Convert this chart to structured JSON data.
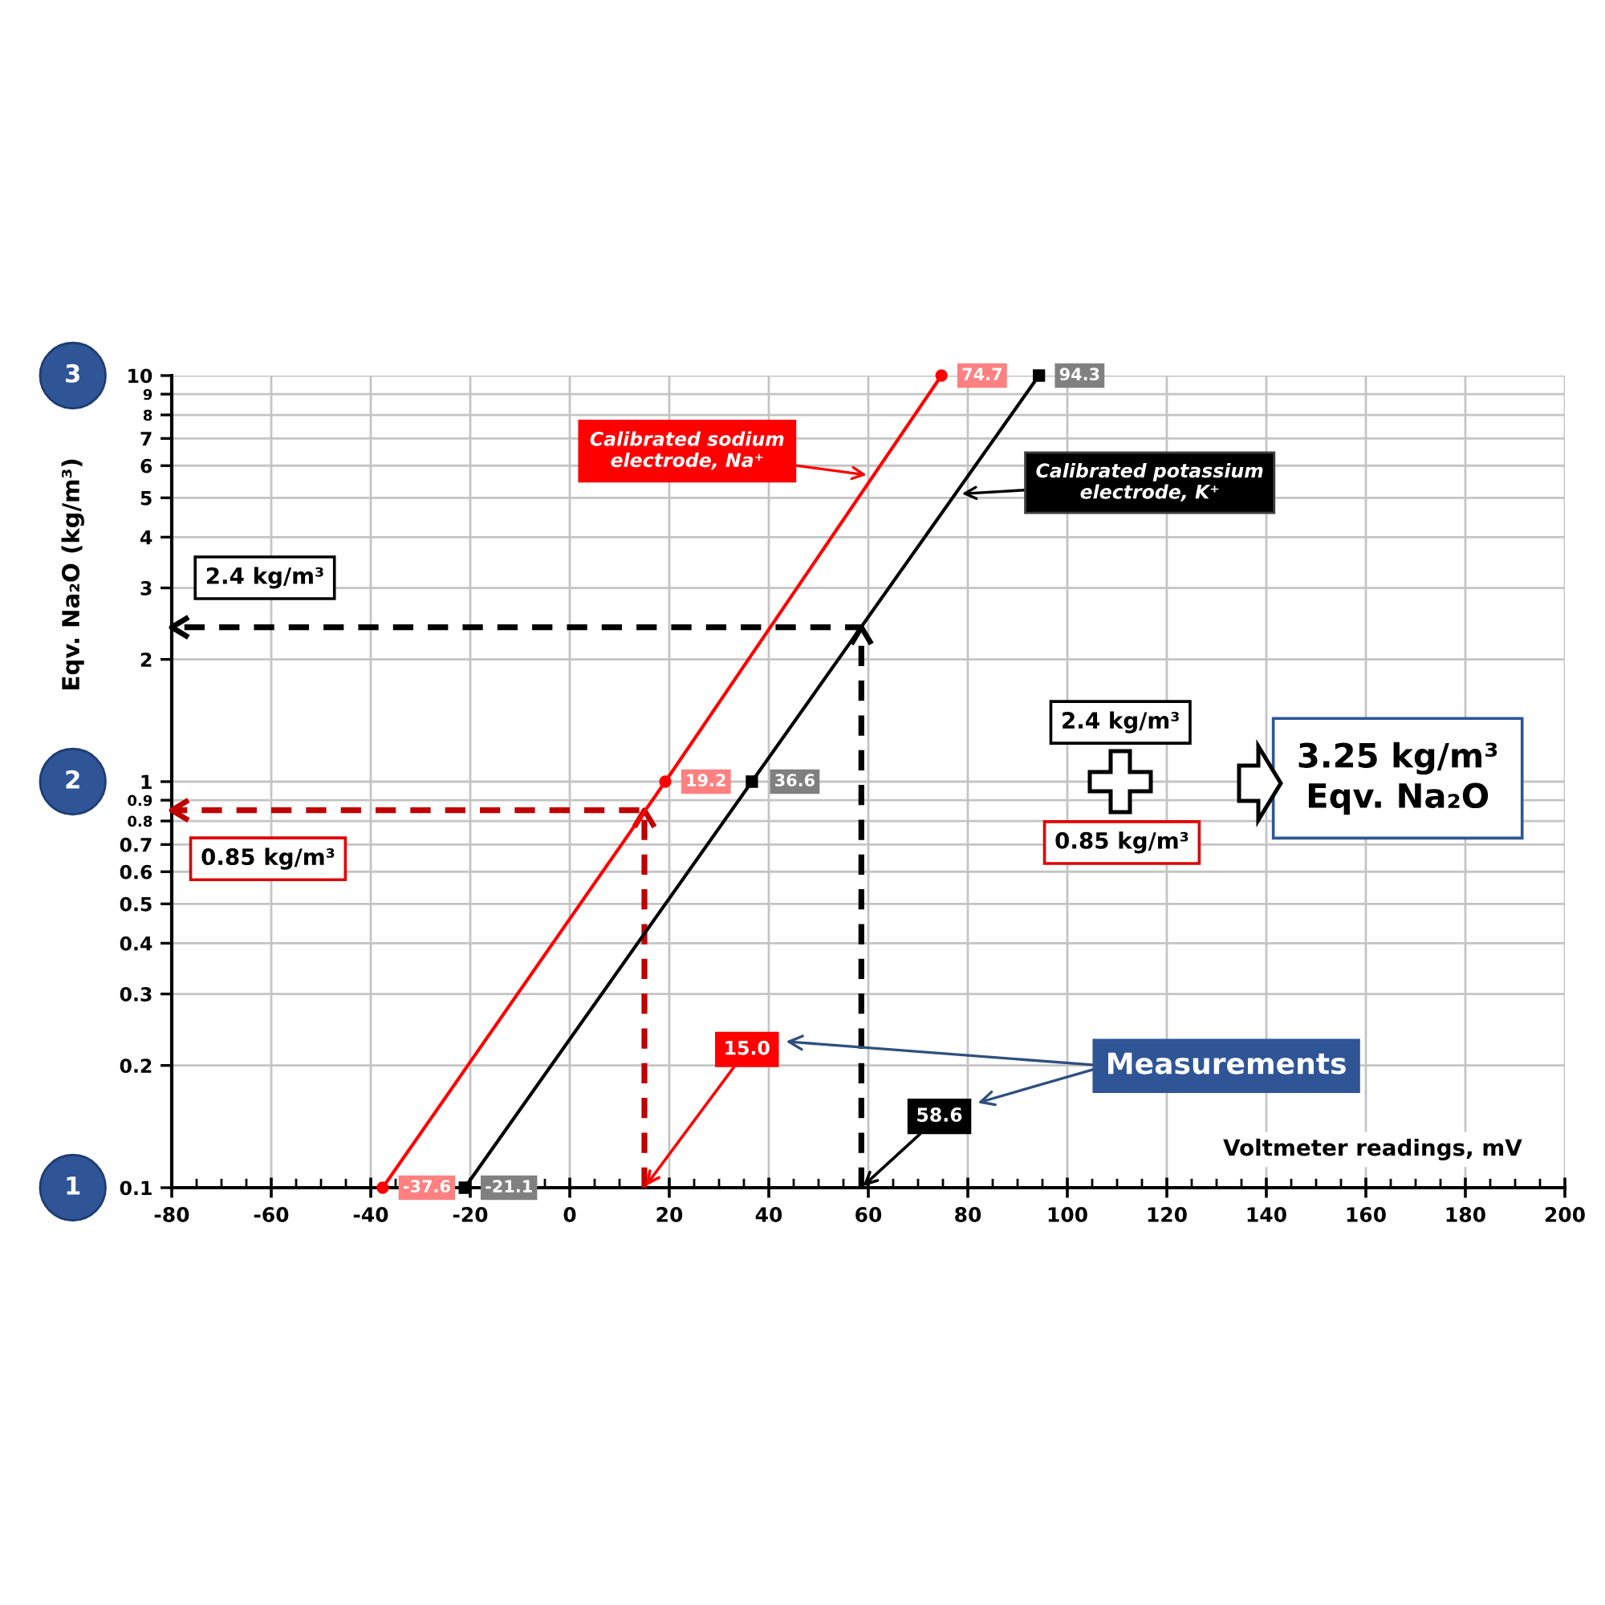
{
  "chart_data": {
    "type": "line",
    "xlabel": "Voltmeter readings, mV",
    "ylabel": "Eqv. Na₂O (kg/m³)",
    "log": "y",
    "grid": true,
    "series": [
      {
        "name": "Calibrated sodium\nelectrode, Na⁺",
        "color": "#ff0000",
        "x": [
          -37.6,
          19.2,
          74.7
        ],
        "values": [
          0.1,
          1,
          10
        ],
        "marker": "circle",
        "line_style": "solid"
      },
      {
        "name": "Calibrated potassium\nelectrode, K⁺",
        "color": "#000000",
        "x": [
          -21.1,
          36.6,
          94.3
        ],
        "values": [
          0.1,
          1,
          10
        ],
        "marker": "square",
        "line_style": "solid"
      },
      {
        "color": "#000000",
        "x": [
          58.6,
          58.6,
          -80
        ],
        "values": [
          0.1,
          2.4,
          2.4
        ],
        "marker": "none",
        "line_style": "dashed"
      },
      {
        "color": "#c00000",
        "x": [
          15.0,
          15.0,
          -80
        ],
        "values": [
          0.1,
          0.85,
          0.85
        ],
        "marker": "none",
        "line_style": "dashed"
      }
    ],
    "xlim": [
      -80,
      200
    ],
    "xticks": [
      -80,
      {
        "value": -75,
        "label": null
      },
      {
        "value": -70,
        "label": null
      },
      {
        "value": -65,
        "label": null
      },
      -60,
      {
        "value": -55,
        "label": null
      },
      {
        "value": -50,
        "label": null
      },
      {
        "value": -45,
        "label": null
      },
      -40,
      {
        "value": -35,
        "label": null
      },
      {
        "value": -30,
        "label": null
      },
      {
        "value": -25,
        "label": null
      },
      -20,
      {
        "value": -15,
        "label": null
      },
      {
        "value": -10,
        "label": null
      },
      {
        "value": -5,
        "label": null
      },
      0,
      {
        "value": 5,
        "label": null
      },
      {
        "value": 10,
        "label": null
      },
      {
        "value": 15,
        "label": null
      },
      20,
      {
        "value": 25,
        "label": null
      },
      {
        "value": 30,
        "label": null
      },
      {
        "value": 35,
        "label": null
      },
      40,
      {
        "value": 45,
        "label": null
      },
      {
        "value": 50,
        "label": null
      },
      {
        "value": 55,
        "label": null
      },
      60,
      {
        "value": 65,
        "label": null
      },
      {
        "value": 70,
        "label": null
      },
      {
        "value": 75,
        "label": null
      },
      80,
      {
        "value": 85,
        "label": null
      },
      {
        "value": 90,
        "label": null
      },
      {
        "value": 95,
        "label": null
      },
      100,
      {
        "value": 105,
        "label": null
      },
      {
        "value": 110,
        "label": null
      },
      {
        "value": 115,
        "label": null
      },
      120,
      {
        "value": 125,
        "label": null
      },
      {
        "value": 130,
        "label": null
      },
      {
        "value": 135,
        "label": null
      },
      140,
      {
        "value": 145,
        "label": null
      },
      {
        "value": 150,
        "label": null
      },
      {
        "value": 155,
        "label": null
      },
      160,
      {
        "value": 165,
        "label": null
      },
      {
        "value": 170,
        "label": null
      },
      {
        "value": 175,
        "label": null
      },
      180,
      {
        "value": 185,
        "label": null
      },
      {
        "value": 190,
        "label": null
      },
      {
        "value": 195,
        "label": null
      },
      200
    ],
    "ylim": [
      0.1,
      10
    ],
    "yticks": [
      0.1,
      0.2,
      0.3,
      0.4,
      0.5,
      0.6,
      0.7,
      0.8,
      0.9,
      1,
      2,
      3,
      4,
      5,
      6,
      7,
      8,
      9,
      10
    ],
    "annotations": [
      "2.4 kg/m³",
      "0.85 kg/m³",
      {
        "text": "15.0",
        "x": 15.0,
        "y": 0.1
      },
      {
        "text": "58.6",
        "x": 58.6,
        "y": 0.1
      },
      "Measurements",
      "2.4 kg/m³",
      "0.85 kg/m³",
      "3.25 kg/m³\nEqv. Na₂O",
      "3",
      "2",
      "1",
      {
        "text": "-37.6",
        "x": -37.6,
        "y": 0.1
      },
      {
        "text": "19.2",
        "x": 19.2,
        "y": 1
      },
      {
        "text": "74.7",
        "x": 74.7,
        "y": 10
      },
      {
        "text": "-21.1",
        "x": -21.1,
        "y": 0.1
      },
      {
        "text": "36.6",
        "x": 36.6,
        "y": 1
      },
      {
        "text": "94.3",
        "x": 94.3,
        "y": 10
      }
    ]
  }
}
